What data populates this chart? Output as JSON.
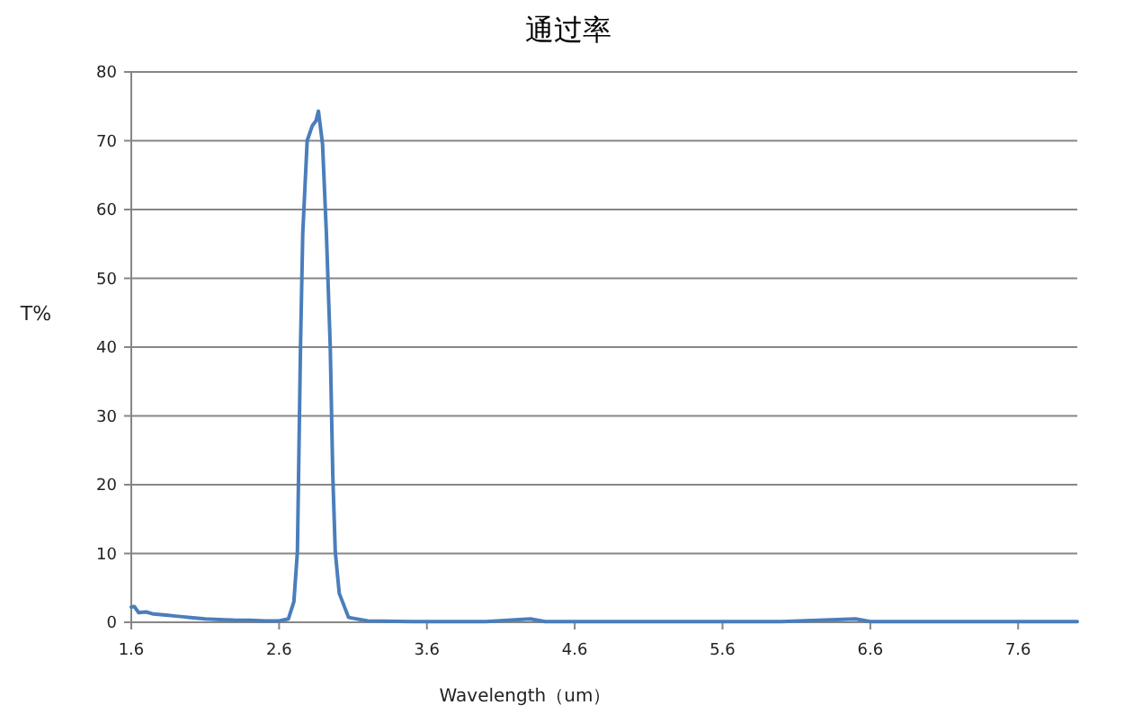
{
  "chart_data": {
    "type": "line",
    "title": "通过率",
    "xlabel": "Wavelength（um）",
    "ylabel": "T%",
    "x": [
      1.6,
      1.62,
      1.65,
      1.7,
      1.75,
      1.8,
      1.85,
      1.9,
      1.95,
      2.0,
      2.1,
      2.2,
      2.3,
      2.4,
      2.5,
      2.6,
      2.663,
      2.7,
      2.724,
      2.745,
      2.76,
      2.79,
      2.825,
      2.85,
      2.866,
      2.894,
      2.92,
      2.946,
      2.963,
      2.98,
      3.007,
      3.07,
      3.2,
      3.5,
      4.0,
      4.3,
      4.4,
      5.0,
      6.0,
      6.5,
      6.6,
      7.0,
      8.0
    ],
    "series": [
      {
        "color": "#4a7ebb",
        "values": [
          2.2,
          2.3,
          1.4,
          1.5,
          1.2,
          1.1,
          1.0,
          0.9,
          0.8,
          0.7,
          0.5,
          0.4,
          0.3,
          0.3,
          0.2,
          0.2,
          0.5,
          3,
          10.3,
          40.2,
          56.5,
          70,
          72.2,
          72.9,
          74.3,
          69.5,
          56.5,
          40.2,
          21.6,
          10.3,
          4.2,
          0.7,
          0.2,
          0.1,
          0.1,
          0.5,
          0.1,
          0.1,
          0.1,
          0.5,
          0.1,
          0.1,
          0.1
        ]
      }
    ],
    "xlim": [
      1.6,
      8.0
    ],
    "ylim": [
      0,
      80
    ],
    "xticks": [
      1.6,
      2.6,
      3.6,
      4.6,
      5.6,
      6.6,
      7.6
    ],
    "yticks": [
      0,
      10,
      20,
      30,
      40,
      50,
      60,
      70,
      80
    ],
    "grid": "y"
  }
}
